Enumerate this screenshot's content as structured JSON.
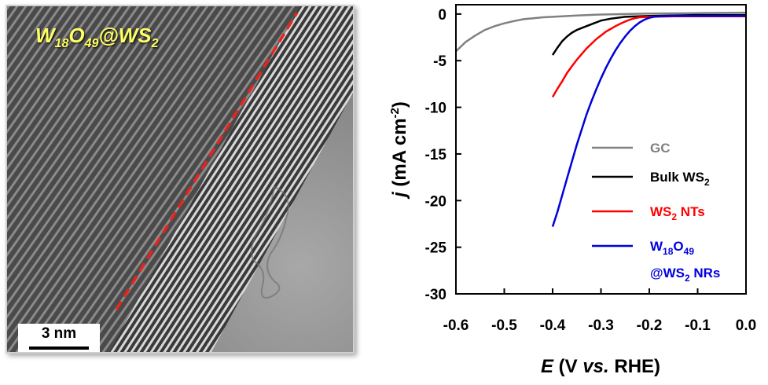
{
  "tem": {
    "label_main": "W",
    "label_sub1": "18",
    "label_mid": "O",
    "label_sub2": "49",
    "label_end": "@WS",
    "label_sub3": "2",
    "scale_bar": "3 nm",
    "label_color": "#ffff66",
    "interface_line_color": "#e8231e"
  },
  "chart_data": {
    "type": "line",
    "xlabel_var": "E",
    "xlabel_open": " (V ",
    "xlabel_vs": "vs.",
    "xlabel_close": " RHE)",
    "ylabel_var": "j",
    "ylabel_unit": " (mA cm",
    "ylabel_exp": "-2",
    "ylabel_close": ")",
    "xlim": [
      -0.6,
      0.0
    ],
    "ylim": [
      -30,
      1
    ],
    "x_ticks": [
      "-0.6",
      "-0.5",
      "-0.4",
      "-0.3",
      "-0.2",
      "-0.1",
      "0.0"
    ],
    "y_ticks": [
      "0",
      "-5",
      "-10",
      "-15",
      "-20",
      "-25",
      "-30"
    ],
    "legend": [
      {
        "text": "GC",
        "color": "#808080"
      },
      {
        "text": "Bulk WS",
        "sub": "2",
        "color": "#000000"
      },
      {
        "text": "WS",
        "sub": "2",
        "after": " NTs",
        "color": "#ff0000"
      },
      {
        "text": "W",
        "sub": "18",
        "mid": "O",
        "sub2": "49",
        "color": "#0000dd"
      },
      {
        "text": "@WS",
        "sub": "2",
        "after": " NRs",
        "color": "#0000dd"
      }
    ],
    "series": [
      {
        "color": "#808080",
        "x": [
          -0.6,
          -0.58,
          -0.56,
          -0.54,
          -0.52,
          -0.5,
          -0.48,
          -0.46,
          -0.44,
          -0.42,
          -0.4,
          -0.35,
          -0.3,
          -0.25,
          -0.2,
          -0.1,
          0.0
        ],
        "y": [
          -4.0,
          -3.0,
          -2.3,
          -1.7,
          -1.3,
          -1.0,
          -0.75,
          -0.55,
          -0.45,
          -0.35,
          -0.3,
          -0.15,
          -0.05,
          0.0,
          0.05,
          0.1,
          0.15
        ]
      },
      {
        "color": "#000000",
        "x": [
          -0.4,
          -0.39,
          -0.38,
          -0.37,
          -0.36,
          -0.35,
          -0.34,
          -0.33,
          -0.32,
          -0.31,
          -0.3,
          -0.28,
          -0.25,
          -0.2,
          -0.1,
          0.0
        ],
        "y": [
          -4.4,
          -3.6,
          -2.9,
          -2.4,
          -2.0,
          -1.7,
          -1.5,
          -1.3,
          -1.1,
          -0.9,
          -0.7,
          -0.5,
          -0.3,
          -0.2,
          -0.1,
          -0.1
        ]
      },
      {
        "color": "#ff0000",
        "x": [
          -0.4,
          -0.39,
          -0.38,
          -0.37,
          -0.36,
          -0.35,
          -0.34,
          -0.33,
          -0.32,
          -0.31,
          -0.3,
          -0.29,
          -0.28,
          -0.27,
          -0.26,
          -0.25,
          -0.24,
          -0.23,
          -0.22,
          -0.2,
          -0.15,
          -0.1,
          0.0
        ],
        "y": [
          -8.9,
          -8.0,
          -7.2,
          -6.3,
          -5.6,
          -4.9,
          -4.3,
          -3.7,
          -3.2,
          -2.7,
          -2.3,
          -1.9,
          -1.6,
          -1.3,
          -1.05,
          -0.8,
          -0.6,
          -0.45,
          -0.35,
          -0.3,
          -0.25,
          -0.25,
          -0.25
        ]
      },
      {
        "color": "#0000dd",
        "x": [
          -0.4,
          -0.39,
          -0.38,
          -0.37,
          -0.36,
          -0.35,
          -0.34,
          -0.33,
          -0.32,
          -0.31,
          -0.3,
          -0.29,
          -0.28,
          -0.27,
          -0.26,
          -0.25,
          -0.24,
          -0.23,
          -0.22,
          -0.21,
          -0.2,
          -0.19,
          -0.18,
          -0.15,
          -0.1,
          0.0
        ],
        "y": [
          -22.8,
          -21.2,
          -19.4,
          -17.6,
          -15.8,
          -14.0,
          -12.4,
          -10.8,
          -9.4,
          -8.1,
          -6.9,
          -5.8,
          -4.8,
          -3.9,
          -3.1,
          -2.4,
          -1.8,
          -1.3,
          -0.9,
          -0.6,
          -0.4,
          -0.3,
          -0.25,
          -0.2,
          -0.2,
          -0.2
        ]
      }
    ]
  }
}
